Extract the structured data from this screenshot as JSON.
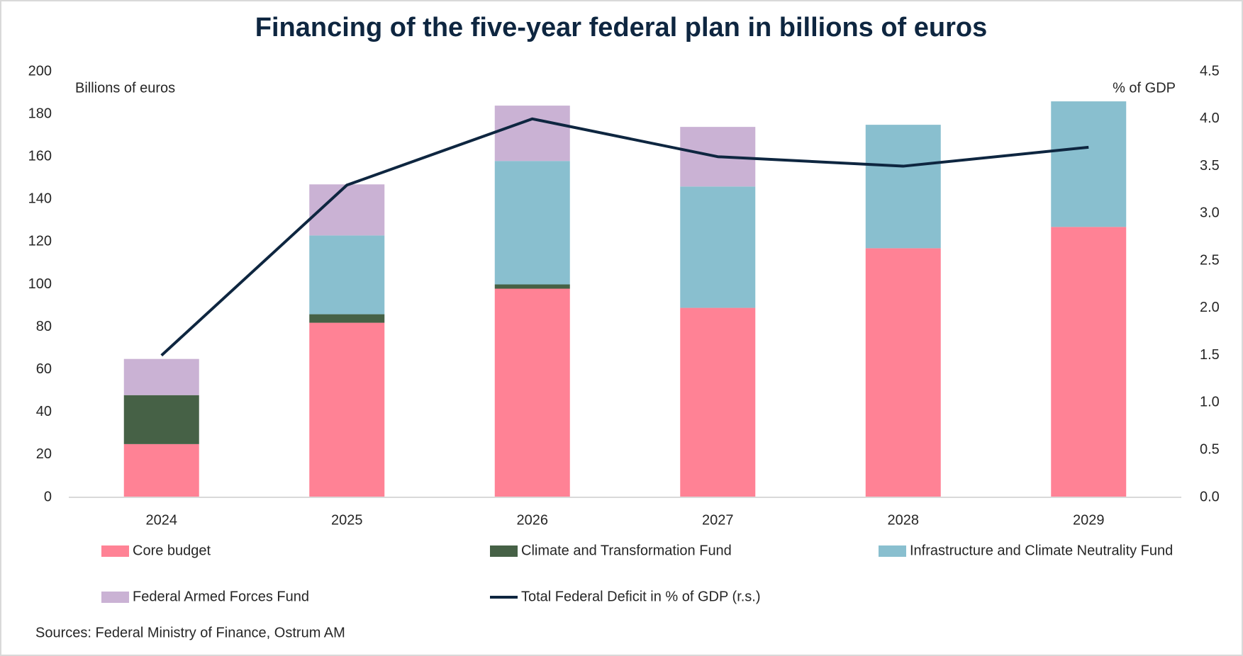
{
  "chart_data": {
    "type": "bar",
    "stacked": true,
    "title": "Financing of the five-year federal plan in billions of euros",
    "y_label": "Billions of euros",
    "y2_label": "% of GDP",
    "source": "Sources: Federal Ministry of Finance, Ostrum AM",
    "categories": [
      "2024",
      "2025",
      "2026",
      "2027",
      "2028",
      "2029"
    ],
    "series": [
      {
        "name": "Core budget",
        "type": "bar",
        "color": "#ff8295",
        "values": [
          25,
          82,
          98,
          89,
          117,
          127
        ]
      },
      {
        "name": "Climate and Transformation Fund",
        "type": "bar",
        "color": "#466146",
        "values": [
          23,
          4,
          2,
          0,
          0,
          0
        ]
      },
      {
        "name": "Infrastructure and Climate Neutrality Fund",
        "type": "bar",
        "color": "#89bfcf",
        "values": [
          0,
          37,
          58,
          57,
          58,
          59
        ]
      },
      {
        "name": "Federal Armed Forces Fund",
        "type": "bar",
        "color": "#cab2d4",
        "values": [
          17,
          24,
          26,
          28,
          0,
          0
        ]
      },
      {
        "name": "Total Federal Deficit in % of GDP (r.s.)",
        "type": "line",
        "axis": "y2",
        "color": "#0e2640",
        "values": [
          1.5,
          3.3,
          4.0,
          3.6,
          3.5,
          3.7
        ]
      }
    ],
    "ylim": [
      0,
      200
    ],
    "yticks": [
      0,
      20,
      40,
      60,
      80,
      100,
      120,
      140,
      160,
      180,
      200
    ],
    "y2lim": [
      0,
      4.5
    ],
    "y2ticks": [
      {
        "value": 0,
        "label": "0.0"
      },
      {
        "value": 0.5,
        "label": "0.5"
      },
      {
        "value": 1,
        "label": "1.0"
      },
      {
        "value": 1.5,
        "label": "1.5"
      },
      {
        "value": 2,
        "label": "2.0"
      },
      {
        "value": 2.5,
        "label": "2.5"
      },
      {
        "value": 3,
        "label": "3.0"
      },
      {
        "value": 3.5,
        "label": "3.5"
      },
      {
        "value": 4,
        "label": "4.0"
      },
      {
        "value": 4.5,
        "label": "4.5"
      }
    ],
    "grid": false,
    "legend": "bottom"
  }
}
